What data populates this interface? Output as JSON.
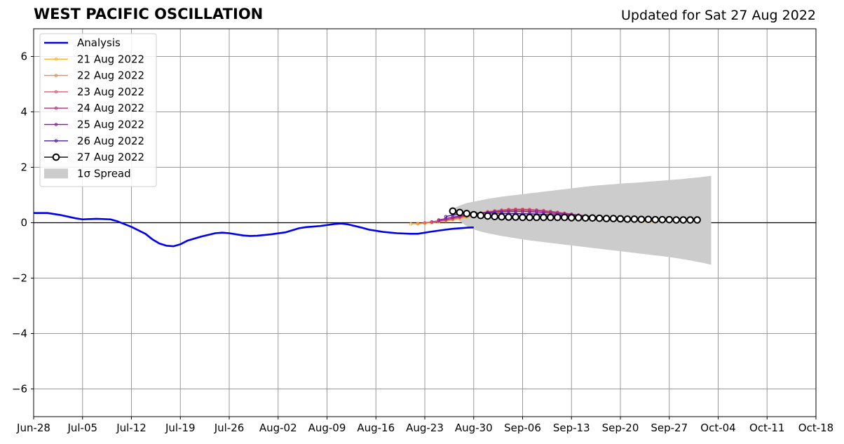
{
  "header": {
    "title": "WEST PACIFIC OSCILLATION",
    "updated": "Updated for Sat 27 Aug 2022"
  },
  "chart_data": {
    "type": "line",
    "title": "WEST PACIFIC OSCILLATION",
    "xlabel": "",
    "ylabel": "",
    "ylim": [
      -7,
      7
    ],
    "yticks": [
      -6,
      -4,
      -2,
      0,
      2,
      4,
      6
    ],
    "ytick_labels": [
      "−6",
      "−4",
      "−2",
      "0",
      "2",
      "4",
      "6"
    ],
    "xlim": [
      "2022-06-28",
      "2022-10-18"
    ],
    "xticks": [
      "2022-06-28",
      "2022-07-05",
      "2022-07-12",
      "2022-07-19",
      "2022-07-26",
      "2022-08-02",
      "2022-08-09",
      "2022-08-16",
      "2022-08-23",
      "2022-08-30",
      "2022-09-06",
      "2022-09-13",
      "2022-09-20",
      "2022-09-27",
      "2022-10-04",
      "2022-10-11",
      "2022-10-18"
    ],
    "xtick_labels": [
      "Jun-28",
      "Jul-05",
      "Jul-12",
      "Jul-19",
      "Jul-26",
      "Aug-02",
      "Aug-09",
      "Aug-16",
      "Aug-23",
      "Aug-30",
      "Sep-06",
      "Sep-13",
      "Sep-20",
      "Sep-27",
      "Oct-04",
      "Oct-11",
      "Oct-18"
    ],
    "grid": true,
    "legend_position": "upper-left",
    "analysis": {
      "name": "Analysis",
      "color": "#0000ee",
      "points": [
        [
          "2022-06-28",
          0.35
        ],
        [
          "2022-06-30",
          0.35
        ],
        [
          "2022-07-02",
          0.27
        ],
        [
          "2022-07-04",
          0.16
        ],
        [
          "2022-07-05",
          0.12
        ],
        [
          "2022-07-07",
          0.14
        ],
        [
          "2022-07-09",
          0.12
        ],
        [
          "2022-07-10",
          0.05
        ],
        [
          "2022-07-12",
          -0.15
        ],
        [
          "2022-07-14",
          -0.4
        ],
        [
          "2022-07-15",
          -0.6
        ],
        [
          "2022-07-16",
          -0.75
        ],
        [
          "2022-07-17",
          -0.83
        ],
        [
          "2022-07-18",
          -0.85
        ],
        [
          "2022-07-19",
          -0.78
        ],
        [
          "2022-07-20",
          -0.65
        ],
        [
          "2022-07-22",
          -0.5
        ],
        [
          "2022-07-24",
          -0.38
        ],
        [
          "2022-07-25",
          -0.36
        ],
        [
          "2022-07-26",
          -0.38
        ],
        [
          "2022-07-28",
          -0.46
        ],
        [
          "2022-07-29",
          -0.48
        ],
        [
          "2022-07-30",
          -0.47
        ],
        [
          "2022-08-01",
          -0.42
        ],
        [
          "2022-08-03",
          -0.35
        ],
        [
          "2022-08-05",
          -0.2
        ],
        [
          "2022-08-06",
          -0.16
        ],
        [
          "2022-08-07",
          -0.14
        ],
        [
          "2022-08-08",
          -0.12
        ],
        [
          "2022-08-10",
          -0.05
        ],
        [
          "2022-08-11",
          -0.03
        ],
        [
          "2022-08-12",
          -0.06
        ],
        [
          "2022-08-14",
          -0.18
        ],
        [
          "2022-08-15",
          -0.25
        ],
        [
          "2022-08-17",
          -0.33
        ],
        [
          "2022-08-19",
          -0.38
        ],
        [
          "2022-08-21",
          -0.4
        ],
        [
          "2022-08-22",
          -0.4
        ],
        [
          "2022-08-24",
          -0.32
        ],
        [
          "2022-08-26",
          -0.25
        ],
        [
          "2022-08-27",
          -0.22
        ],
        [
          "2022-08-28",
          -0.2
        ],
        [
          "2022-08-29",
          -0.18
        ],
        [
          "2022-08-30",
          -0.17
        ]
      ]
    },
    "forecasts": [
      {
        "name": "21 Aug 2022",
        "color": "#f7b733",
        "start": "2022-08-21",
        "values": [
          -0.05,
          -0.04,
          -0.02,
          0.0,
          0.03,
          0.06,
          0.1,
          0.15,
          0.2,
          0.25,
          0.29,
          0.33,
          0.36,
          0.39,
          0.41,
          0.42,
          0.42,
          0.41,
          0.39,
          0.37,
          0.34,
          0.31,
          0.28,
          0.25,
          0.22,
          0.19,
          0.16,
          0.14,
          0.12,
          0.1,
          0.08,
          0.07,
          0.06,
          0.05,
          0.04,
          0.03
        ]
      },
      {
        "name": "22 Aug 2022",
        "color": "#ef8b3c",
        "start": "2022-08-22",
        "values": [
          -0.03,
          -0.01,
          0.01,
          0.04,
          0.08,
          0.12,
          0.17,
          0.22,
          0.28,
          0.33,
          0.38,
          0.42,
          0.45,
          0.47,
          0.48,
          0.48,
          0.47,
          0.45,
          0.42,
          0.39,
          0.35,
          0.32,
          0.28,
          0.25,
          0.22,
          0.19,
          0.16,
          0.14,
          0.12,
          0.1,
          0.09,
          0.08,
          0.07,
          0.06,
          0.05,
          0.04
        ]
      },
      {
        "name": "23 Aug 2022",
        "color": "#de5c6c",
        "start": "2022-08-23",
        "values": [
          0.0,
          0.03,
          0.06,
          0.1,
          0.15,
          0.2,
          0.25,
          0.3,
          0.35,
          0.4,
          0.43,
          0.46,
          0.48,
          0.49,
          0.49,
          0.48,
          0.46,
          0.44,
          0.41,
          0.38,
          0.34,
          0.31,
          0.27,
          0.24,
          0.21,
          0.18,
          0.16,
          0.14,
          0.12,
          0.11,
          0.1,
          0.09,
          0.08,
          0.07,
          0.07,
          0.06
        ]
      },
      {
        "name": "24 Aug 2022",
        "color": "#b5367b",
        "start": "2022-08-24",
        "values": [
          0.03,
          0.07,
          0.11,
          0.16,
          0.21,
          0.26,
          0.3,
          0.34,
          0.38,
          0.41,
          0.43,
          0.45,
          0.46,
          0.46,
          0.45,
          0.44,
          0.42,
          0.4,
          0.37,
          0.34,
          0.31,
          0.28,
          0.25,
          0.22,
          0.2,
          0.17,
          0.15,
          0.14,
          0.12,
          0.11,
          0.1,
          0.1,
          0.09,
          0.09,
          0.08,
          0.08
        ]
      },
      {
        "name": "25 Aug 2022",
        "color": "#8b20a0",
        "start": "2022-08-25",
        "values": [
          0.1,
          0.15,
          0.2,
          0.24,
          0.28,
          0.32,
          0.35,
          0.37,
          0.39,
          0.4,
          0.41,
          0.41,
          0.41,
          0.4,
          0.39,
          0.37,
          0.35,
          0.33,
          0.31,
          0.29,
          0.26,
          0.24,
          0.22,
          0.2,
          0.18,
          0.16,
          0.15,
          0.14,
          0.13,
          0.12,
          0.11,
          0.11,
          0.1,
          0.1,
          0.1,
          0.1
        ]
      },
      {
        "name": "26 Aug 2022",
        "color": "#4f1c9c",
        "start": "2022-08-26",
        "values": [
          0.22,
          0.28,
          0.32,
          0.34,
          0.35,
          0.35,
          0.35,
          0.34,
          0.34,
          0.33,
          0.33,
          0.32,
          0.32,
          0.31,
          0.3,
          0.29,
          0.28,
          0.27,
          0.26,
          0.25,
          0.23,
          0.22,
          0.21,
          0.19,
          0.18,
          0.17,
          0.16,
          0.15,
          0.14,
          0.13,
          0.12,
          0.12,
          0.11,
          0.11,
          0.1,
          0.1
        ]
      }
    ],
    "latest": {
      "name": "27 Aug 2022",
      "color": "#000000",
      "start": "2022-08-27",
      "values": [
        0.42,
        0.37,
        0.33,
        0.29,
        0.26,
        0.24,
        0.22,
        0.21,
        0.2,
        0.2,
        0.19,
        0.19,
        0.19,
        0.19,
        0.19,
        0.19,
        0.19,
        0.18,
        0.18,
        0.17,
        0.17,
        0.16,
        0.15,
        0.15,
        0.14,
        0.13,
        0.13,
        0.12,
        0.12,
        0.11,
        0.11,
        0.11,
        0.1,
        0.1,
        0.1,
        0.1
      ]
    },
    "spread": {
      "name": "1σ Spread",
      "color": "#cccccc",
      "start": "2022-08-27",
      "upper": [
        0.5,
        0.62,
        0.71,
        0.76,
        0.81,
        0.86,
        0.9,
        0.94,
        0.97,
        1.0,
        1.03,
        1.06,
        1.09,
        1.12,
        1.15,
        1.18,
        1.21,
        1.24,
        1.27,
        1.3,
        1.33,
        1.35,
        1.37,
        1.39,
        1.41,
        1.43,
        1.44,
        1.46,
        1.48,
        1.5,
        1.52,
        1.54,
        1.56,
        1.58,
        1.61,
        1.63,
        1.66,
        1.69
      ],
      "lower": [
        0.3,
        0.05,
        -0.12,
        -0.24,
        -0.32,
        -0.38,
        -0.43,
        -0.48,
        -0.52,
        -0.56,
        -0.6,
        -0.64,
        -0.67,
        -0.7,
        -0.73,
        -0.76,
        -0.79,
        -0.82,
        -0.85,
        -0.88,
        -0.91,
        -0.94,
        -0.97,
        -1.0,
        -1.03,
        -1.06,
        -1.09,
        -1.12,
        -1.15,
        -1.18,
        -1.21,
        -1.24,
        -1.28,
        -1.32,
        -1.36,
        -1.41,
        -1.46,
        -1.52
      ]
    }
  }
}
